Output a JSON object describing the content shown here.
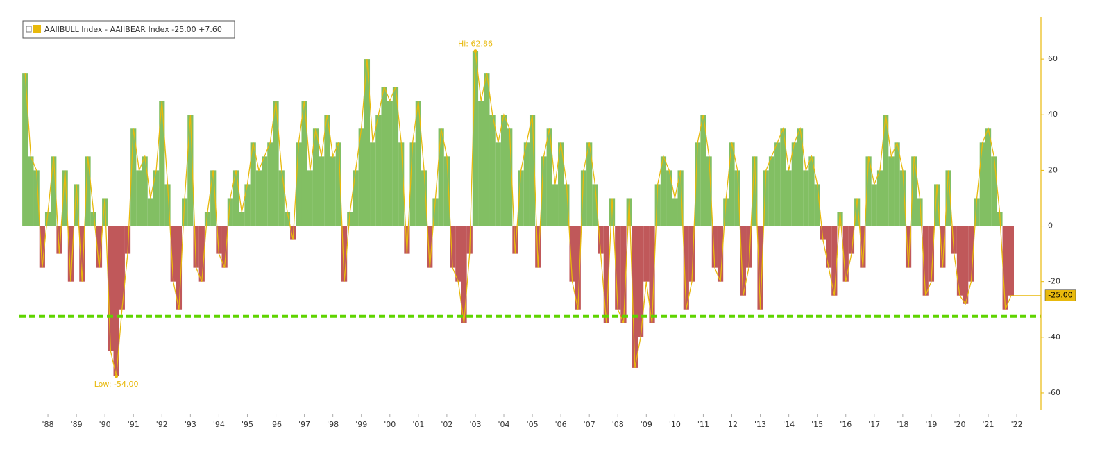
{
  "chart_data": {
    "type": "bar-line",
    "legend": "AAIIBULL Index - AAIIBEAR Index -25.00 +7.60",
    "hi_label": "Hi: 62.86",
    "low_label": "Low: -54.00",
    "last_value_label": "-25.00",
    "positive_color": "#82bf63",
    "negative_color": "#c0585a",
    "line_color": "#e8b90c",
    "reference_line": {
      "value": -32.5,
      "color": "#5fd400"
    },
    "x": [
      1987.2,
      1987.4,
      1987.6,
      1987.8,
      1988.0,
      1988.2,
      1988.4,
      1988.6,
      1988.8,
      1989.0,
      1989.2,
      1989.4,
      1989.6,
      1989.8,
      1990.0,
      1990.2,
      1990.4,
      1990.6,
      1990.8,
      1991.0,
      1991.2,
      1991.4,
      1991.6,
      1991.8,
      1992.0,
      1992.2,
      1992.4,
      1992.6,
      1992.8,
      1993.0,
      1993.2,
      1993.4,
      1993.6,
      1993.8,
      1994.0,
      1994.2,
      1994.4,
      1994.6,
      1994.8,
      1995.0,
      1995.2,
      1995.4,
      1995.6,
      1995.8,
      1996.0,
      1996.2,
      1996.4,
      1996.6,
      1996.8,
      1997.0,
      1997.2,
      1997.4,
      1997.6,
      1997.8,
      1998.0,
      1998.2,
      1998.4,
      1998.6,
      1998.8,
      1999.0,
      1999.2,
      1999.4,
      1999.6,
      1999.8,
      2000.0,
      2000.2,
      2000.4,
      2000.6,
      2000.8,
      2001.0,
      2001.2,
      2001.4,
      2001.6,
      2001.8,
      2002.0,
      2002.2,
      2002.4,
      2002.6,
      2002.8,
      2003.0,
      2003.2,
      2003.4,
      2003.6,
      2003.8,
      2004.0,
      2004.2,
      2004.4,
      2004.6,
      2004.8,
      2005.0,
      2005.2,
      2005.4,
      2005.6,
      2005.8,
      2006.0,
      2006.2,
      2006.4,
      2006.6,
      2006.8,
      2007.0,
      2007.2,
      2007.4,
      2007.6,
      2007.8,
      2008.0,
      2008.2,
      2008.4,
      2008.6,
      2008.8,
      2009.0,
      2009.2,
      2009.4,
      2009.6,
      2009.8,
      2010.0,
      2010.2,
      2010.4,
      2010.6,
      2010.8,
      2011.0,
      2011.2,
      2011.4,
      2011.6,
      2011.8,
      2012.0,
      2012.2,
      2012.4,
      2012.6,
      2012.8,
      2013.0,
      2013.2,
      2013.4,
      2013.6,
      2013.8,
      2014.0,
      2014.2,
      2014.4,
      2014.6,
      2014.8,
      2015.0,
      2015.2,
      2015.4,
      2015.6,
      2015.8,
      2016.0,
      2016.2,
      2016.4,
      2016.6,
      2016.8,
      2017.0,
      2017.2,
      2017.4,
      2017.6,
      2017.8,
      2018.0,
      2018.2,
      2018.4,
      2018.6,
      2018.8,
      2019.0,
      2019.2,
      2019.4,
      2019.6,
      2019.8,
      2020.0,
      2020.2,
      2020.4,
      2020.6,
      2020.8,
      2021.0,
      2021.2,
      2021.4,
      2021.6,
      2021.8
    ],
    "series": [
      {
        "name": "AAIIBULL Index - AAIIBEAR Index",
        "values": [
          55,
          25,
          20,
          -15,
          5,
          25,
          -10,
          20,
          -20,
          15,
          -20,
          25,
          5,
          -15,
          10,
          -45,
          -54,
          -30,
          -10,
          35,
          20,
          25,
          10,
          20,
          45,
          15,
          -20,
          -30,
          10,
          40,
          -15,
          -20,
          5,
          20,
          -10,
          -15,
          10,
          20,
          5,
          15,
          30,
          20,
          25,
          30,
          45,
          20,
          5,
          -5,
          30,
          45,
          20,
          35,
          25,
          40,
          25,
          30,
          -20,
          5,
          20,
          35,
          60,
          30,
          40,
          50,
          45,
          50,
          30,
          -10,
          30,
          45,
          20,
          -15,
          10,
          35,
          25,
          -15,
          -20,
          -35,
          -10,
          62.86,
          45,
          55,
          40,
          30,
          40,
          35,
          -10,
          20,
          30,
          40,
          -15,
          25,
          35,
          15,
          30,
          15,
          -20,
          -30,
          20,
          30,
          15,
          -10,
          -35,
          10,
          -30,
          -35,
          10,
          -51,
          -40,
          -20,
          -35,
          15,
          25,
          20,
          10,
          20,
          -30,
          -20,
          30,
          40,
          25,
          -15,
          -20,
          10,
          30,
          20,
          -25,
          -15,
          25,
          -30,
          20,
          25,
          30,
          35,
          20,
          30,
          35,
          20,
          25,
          15,
          -5,
          -15,
          -25,
          5,
          -20,
          -10,
          10,
          -15,
          25,
          15,
          20,
          40,
          25,
          30,
          20,
          -15,
          25,
          10,
          -25,
          -20,
          15,
          -15,
          20,
          -10,
          -25,
          -28,
          -20,
          10,
          30,
          35,
          25,
          5,
          -30,
          -25
        ]
      }
    ],
    "xlim": [
      1987,
      2022.85
    ],
    "ylim": [
      -66,
      75
    ],
    "xticks": [
      {
        "value": 1988,
        "label": "'88"
      },
      {
        "value": 1989,
        "label": "'89"
      },
      {
        "value": 1990,
        "label": "'90"
      },
      {
        "value": 1991,
        "label": "'91"
      },
      {
        "value": 1992,
        "label": "'92"
      },
      {
        "value": 1993,
        "label": "'93"
      },
      {
        "value": 1994,
        "label": "'94"
      },
      {
        "value": 1995,
        "label": "'95"
      },
      {
        "value": 1996,
        "label": "'96"
      },
      {
        "value": 1997,
        "label": "'97"
      },
      {
        "value": 1998,
        "label": "'98"
      },
      {
        "value": 1999,
        "label": "'99"
      },
      {
        "value": 2000,
        "label": "'00"
      },
      {
        "value": 2001,
        "label": "'01"
      },
      {
        "value": 2002,
        "label": "'02"
      },
      {
        "value": 2003,
        "label": "'03"
      },
      {
        "value": 2004,
        "label": "'04"
      },
      {
        "value": 2005,
        "label": "'05"
      },
      {
        "value": 2006,
        "label": "'06"
      },
      {
        "value": 2007,
        "label": "'07"
      },
      {
        "value": 2008,
        "label": "'08"
      },
      {
        "value": 2009,
        "label": "'09"
      },
      {
        "value": 2010,
        "label": "'10"
      },
      {
        "value": 2011,
        "label": "'11"
      },
      {
        "value": 2012,
        "label": "'12"
      },
      {
        "value": 2013,
        "label": "'13"
      },
      {
        "value": 2014,
        "label": "'14"
      },
      {
        "value": 2015,
        "label": "'15"
      },
      {
        "value": 2016,
        "label": "'16"
      },
      {
        "value": 2017,
        "label": "'17"
      },
      {
        "value": 2018,
        "label": "'18"
      },
      {
        "value": 2019,
        "label": "'19"
      },
      {
        "value": 2020,
        "label": "'20"
      },
      {
        "value": 2021,
        "label": "'21"
      },
      {
        "value": 2022,
        "label": "'22"
      }
    ],
    "yticks": [
      60,
      40,
      20,
      0,
      -20,
      -40,
      -60
    ]
  }
}
